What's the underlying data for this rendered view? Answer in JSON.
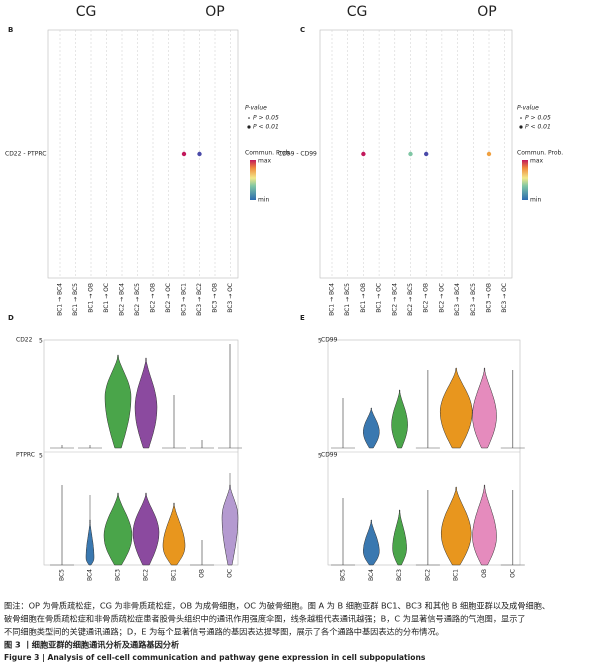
{
  "panel_b": {
    "label": "B",
    "groups": [
      "CG",
      "OP"
    ],
    "y_label": "CD22 - PTPRC",
    "x_labels": [
      "BC1 → BC4",
      "BC1 → BC5",
      "BC1 → OB",
      "BC1 → OC",
      "BC2 → BC4",
      "BC2 → BC5",
      "BC2 → OB",
      "BC2 → OC",
      "BC3 → BC1",
      "BC3 → BC2",
      "BC3 → OB",
      "BC3 → OC"
    ]
  },
  "panel_c": {
    "label": "C",
    "groups": [
      "CG",
      "OP"
    ],
    "y_label": "CD99 - CD99",
    "x_labels": [
      "BC1 → BC4",
      "BC1 → BC5",
      "BC1 → OB",
      "BC1 → OC",
      "BC2 → BC4",
      "BC2 → BC5",
      "BC2 → OB",
      "BC2 → OC",
      "BC3 → BC4",
      "BC3 → BC5",
      "BC3 → OB",
      "BC3 → OC"
    ]
  },
  "legend": {
    "title": "P-value",
    "items": [
      "P > 0.05",
      "P < 0.01"
    ],
    "color_title": "Commun. Prob.",
    "max": "max",
    "min": "min"
  },
  "panel_d": {
    "label": "D",
    "genes": [
      "CD22",
      "PTPRC"
    ],
    "y_tick": "5",
    "categories": [
      "BC5",
      "BC4",
      "BC3",
      "BC2",
      "BC1",
      "OB",
      "OC"
    ]
  },
  "panel_e": {
    "label": "E",
    "genes": [
      "CD99",
      "CD99"
    ],
    "y_tick": "5",
    "categories": [
      "BC5",
      "BC4",
      "BC3",
      "BC2",
      "BC1",
      "OB",
      "OC"
    ]
  },
  "caption": {
    "lines": [
      "图注：OP 为骨质疏松症，CG 为非骨质疏松症，OB 为成骨细胞，OC 为破骨细胞。图 A 为 B 细胞亚群 BC1、BC3 和其他 B 细胞亚群以及成骨细胞、",
      "破骨细胞在骨质疏松症和非骨质疏松症患者股骨头组织中的通讯作用强度伞图，线条越粗代表通讯越强；B，C 为显著信号通路的气泡图，显示了",
      "不同细胞类型间的关键通讯通路；D，E 为每个显著信号通路的基因表达提琴图，展示了各个通路中基因表达的分布情况。"
    ],
    "title_cn": "图 3 丨细胞亚群的细胞通讯分析及通路基因分析",
    "title_en": "Figure 3 | Analysis of cell-cell communication and pathway gene expression in cell subpopulations"
  }
}
